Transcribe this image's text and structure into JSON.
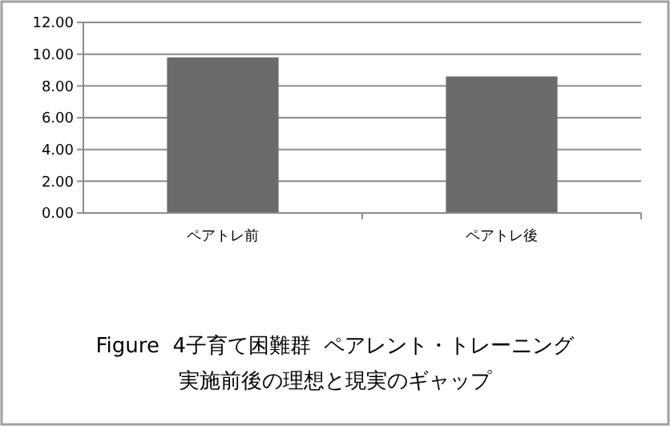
{
  "chart_data": {
    "type": "bar",
    "title": "Figure  4子育て困難群  ペアレント・トレーニング実施前後の理想と現実のギャップ",
    "categories": [
      "ペアトレ前",
      "ペアトレ後"
    ],
    "values": [
      9.8,
      8.6
    ],
    "color": "#6b6b6b",
    "ylim": [
      0,
      12
    ],
    "yticks": [
      {
        "value": 0,
        "label": "0.00"
      },
      {
        "value": 2,
        "label": "2.00"
      },
      {
        "value": 4,
        "label": "4.00"
      },
      {
        "value": 6,
        "label": "6.00"
      },
      {
        "value": 8,
        "label": "8.00"
      },
      {
        "value": 10,
        "label": "10.00"
      },
      {
        "value": 12,
        "label": "12.00"
      }
    ],
    "grid": true
  }
}
